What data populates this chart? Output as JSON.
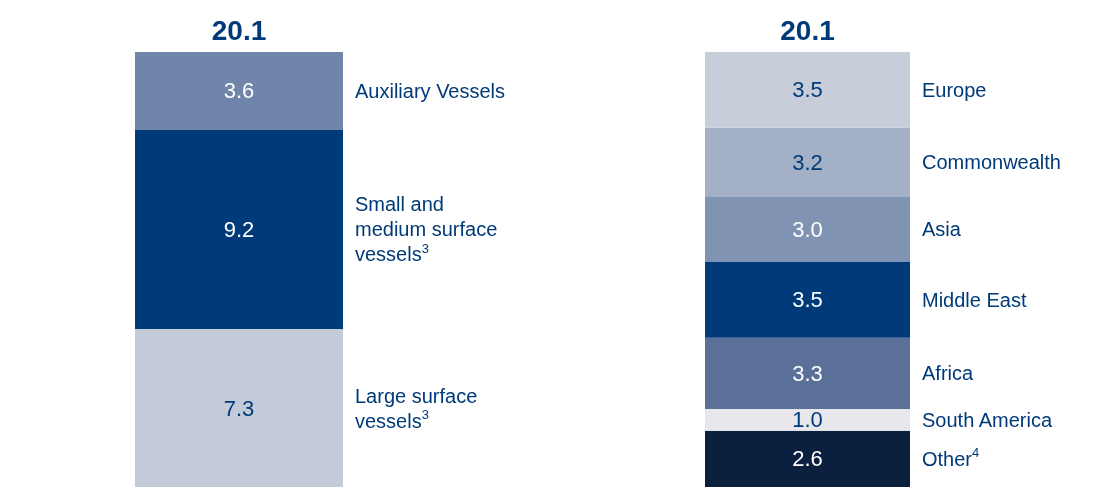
{
  "chart_data": [
    {
      "type": "bar",
      "stacked": true,
      "data_labels": true,
      "legend": false,
      "categories": [
        null
      ],
      "totals": [
        "20.1"
      ],
      "series": [
        {
          "name": "Large surface vessels$^{3}$",
          "color": "#c3cad8",
          "values": [
            7.3
          ]
        },
        {
          "name": "Small and medium surface vessels$^{3}$",
          "color": "#003a78",
          "values": [
            9.2
          ]
        },
        {
          "name": "Auxiliary Vessels",
          "color": "#6f86aa",
          "values": [
            3.6
          ]
        }
      ]
    },
    {
      "type": "bar",
      "stacked": true,
      "data_labels": true,
      "legend": false,
      "categories": [
        null
      ],
      "totals": [
        "20.1"
      ],
      "series": [
        {
          "name": "Other$^{4}$",
          "color": "#0b1f3f",
          "values": [
            2.6
          ]
        },
        {
          "name": "South America",
          "color": "#e8e8ec",
          "values": [
            1.0
          ],
          "value_labels": [
            "1.0"
          ]
        },
        {
          "name": "Africa",
          "color": "#5a7099",
          "values": [
            3.3
          ]
        },
        {
          "name": "Middle East",
          "color": "#003a78",
          "values": [
            3.5
          ]
        },
        {
          "name": "Asia",
          "color": "#8193b3",
          "values": [
            3.0
          ],
          "value_labels": [
            "3.0"
          ]
        },
        {
          "name": "Commonwealth",
          "color": "#a3b0c6",
          "values": [
            3.2
          ]
        },
        {
          "name": "Europe",
          "color": "#c7cdd9",
          "values": [
            3.5
          ]
        }
      ]
    }
  ]
}
